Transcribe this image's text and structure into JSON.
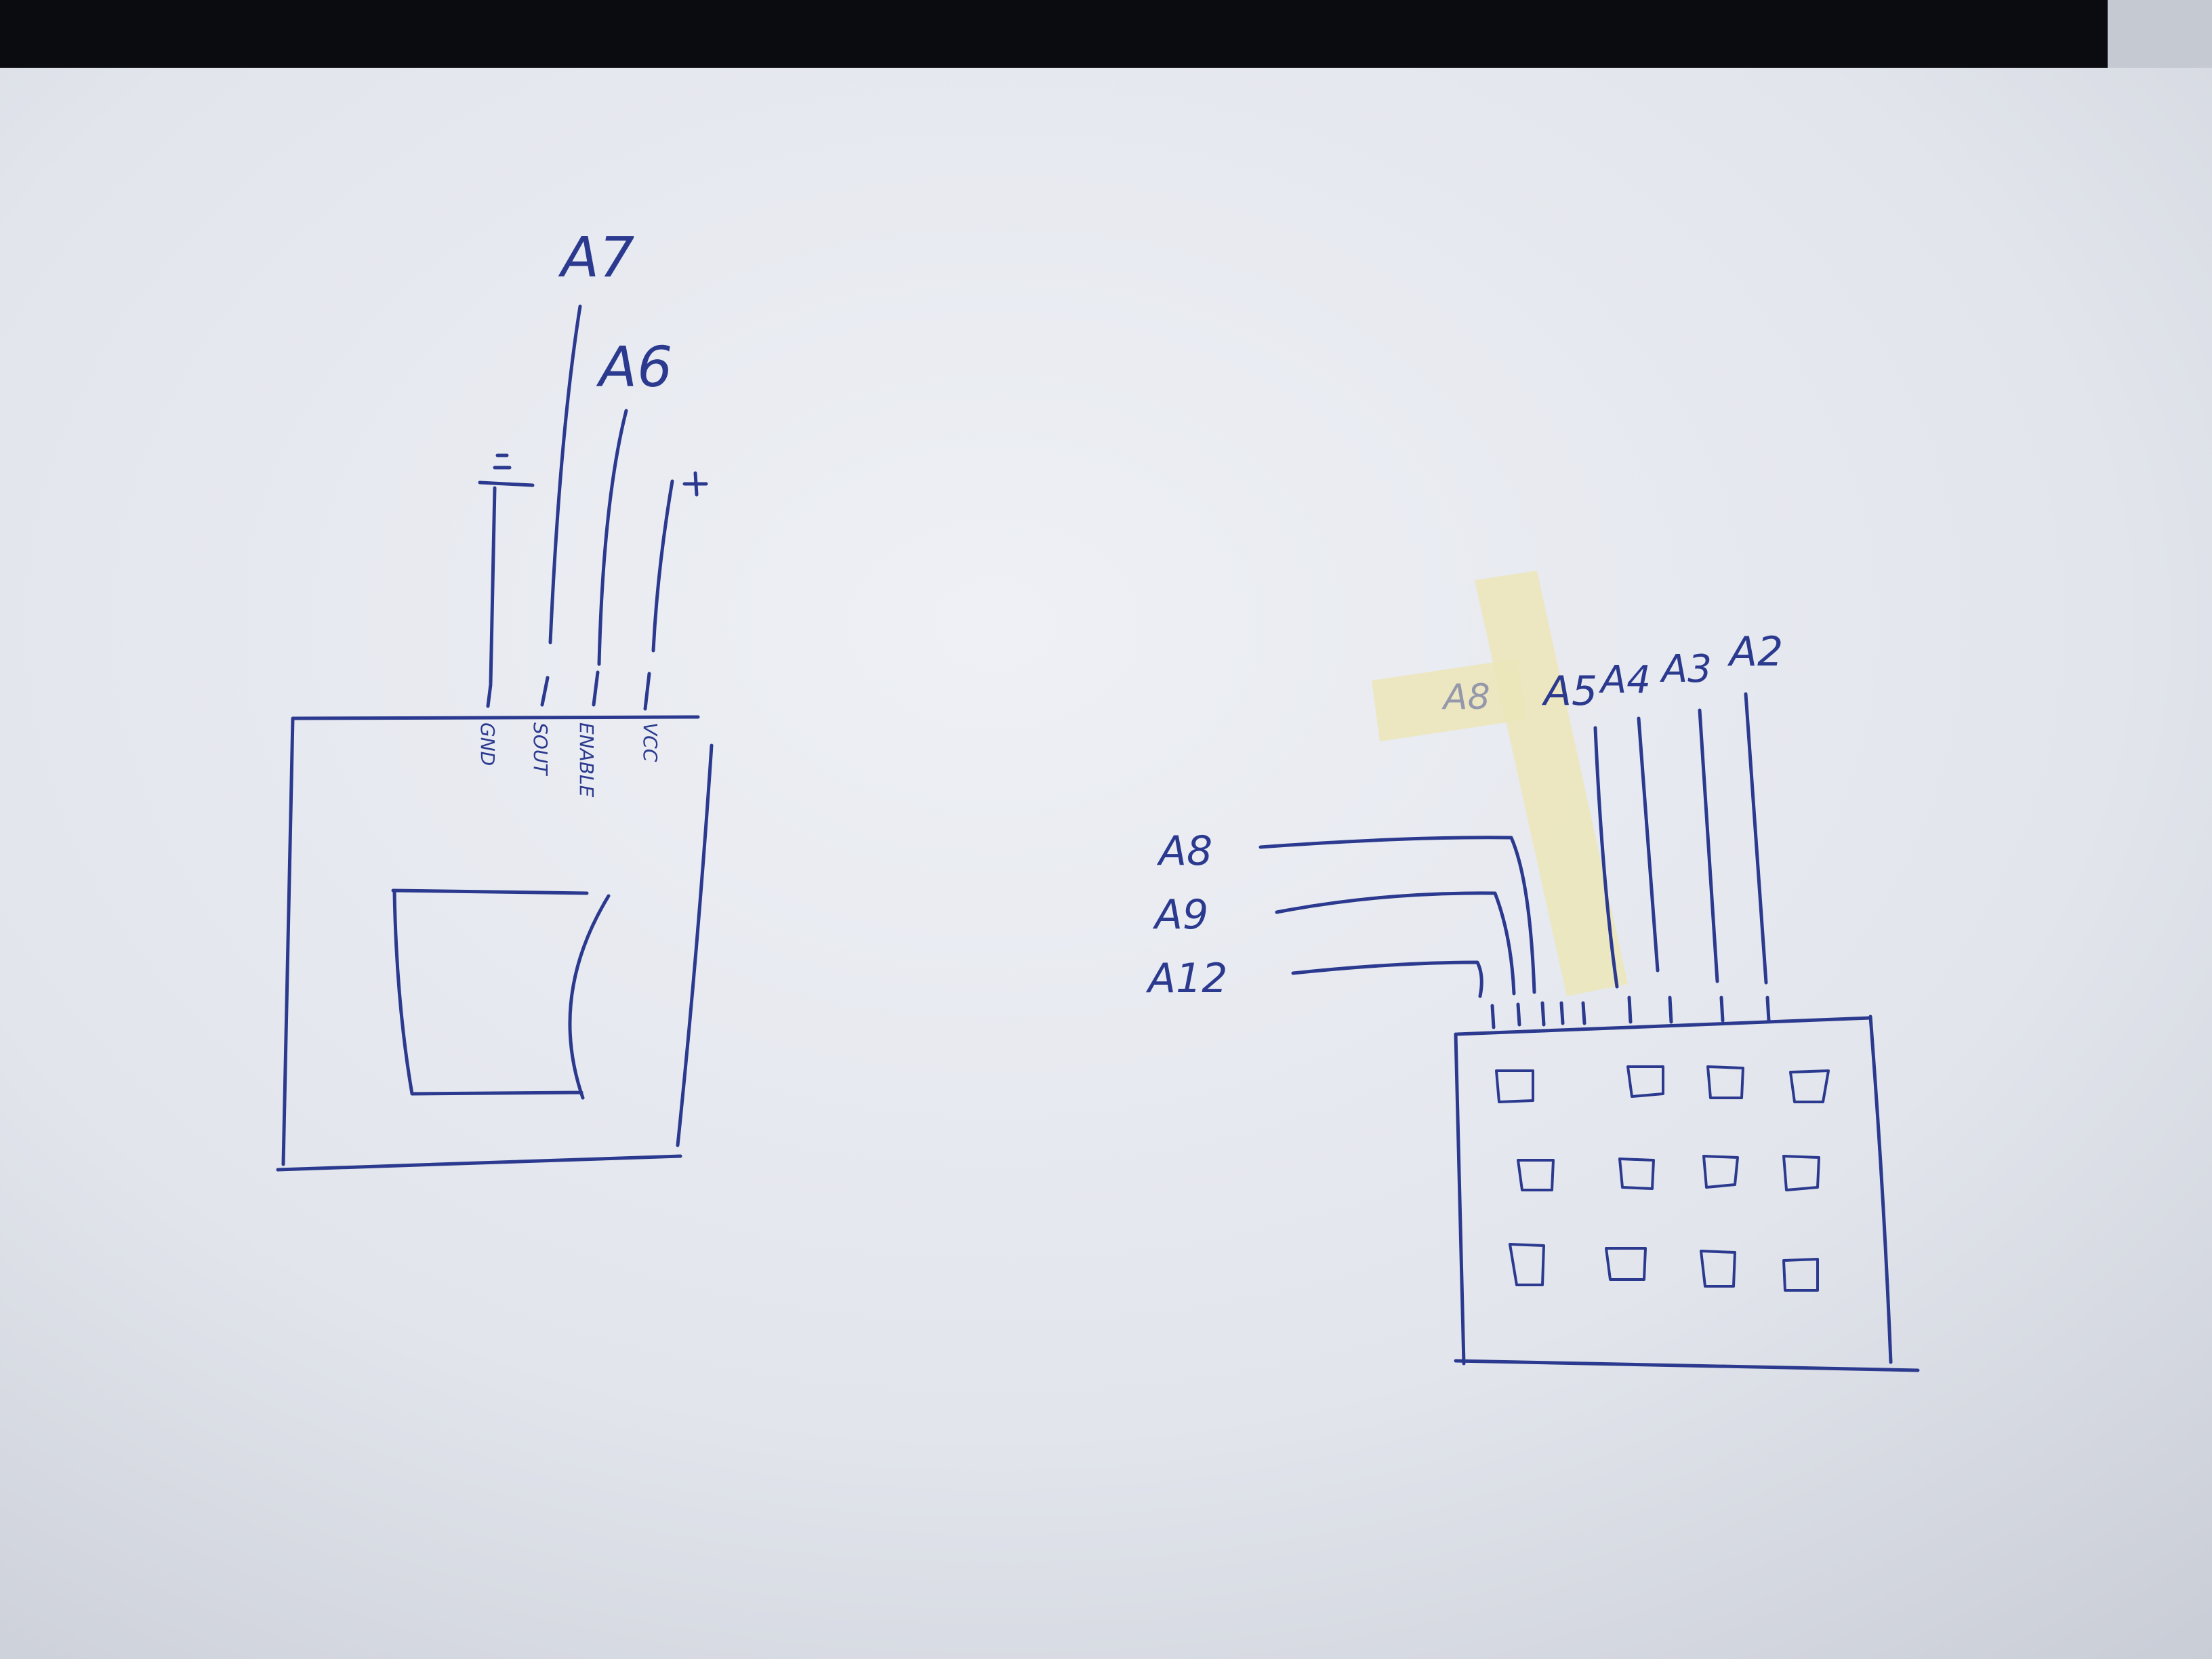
{
  "sensor_module": {
    "top_labels": {
      "a7": "A7",
      "a6": "A6",
      "ground_symbol": "=",
      "plus": "+"
    },
    "pin_labels": [
      "GND",
      "SOUT",
      "ENABLE",
      "VCC"
    ]
  },
  "keypad": {
    "top_labels": [
      "A5",
      "A4",
      "A3",
      "A2"
    ],
    "taped_label": "A8",
    "side_labels": [
      "A8",
      "A9",
      "A12"
    ],
    "grid": {
      "rows": 3,
      "cols": 4
    }
  },
  "colors": {
    "ink": "#2b3a8f",
    "paper": "#e4e7ee",
    "tape": "#e9e3b4",
    "top_bar": "#0b0c10"
  }
}
